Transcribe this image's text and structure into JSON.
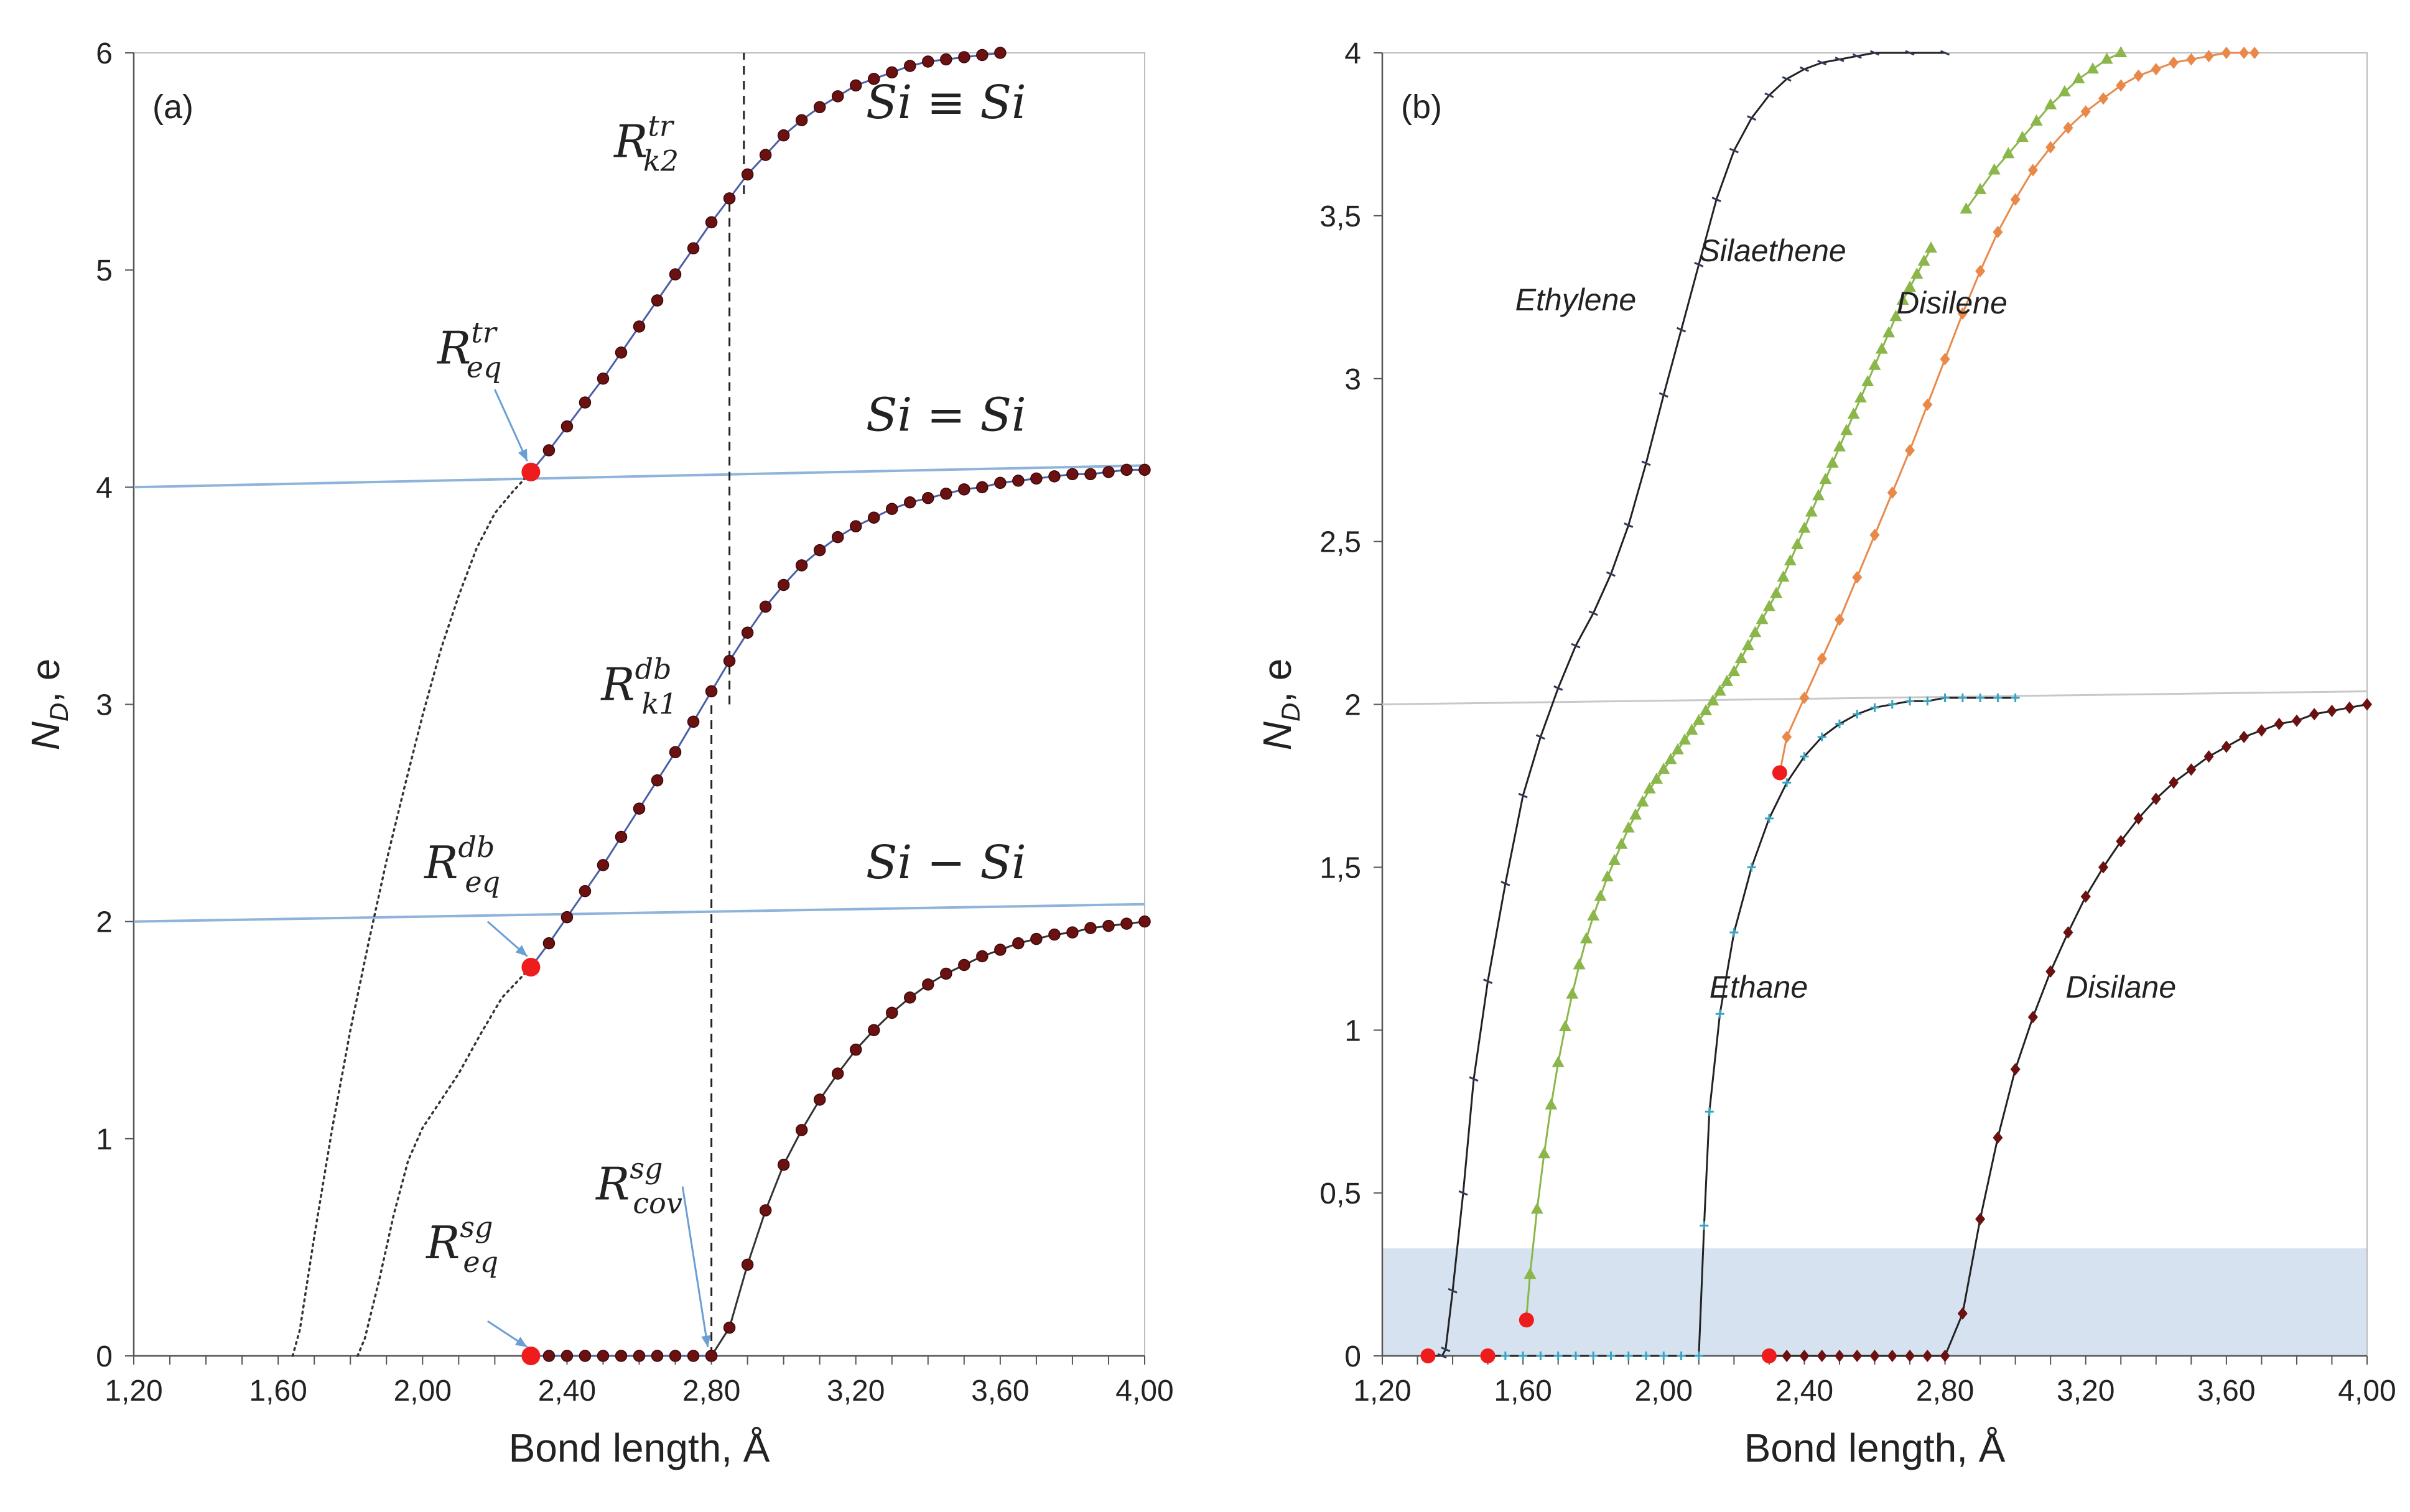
{
  "chart_data": [
    {
      "type": "line",
      "panel_label": "(a)",
      "xlabel": "Bond length, Å",
      "ylabel_main": "N",
      "ylabel_sub": "D",
      "ylabel_rest": ", e",
      "xlim": [
        1.2,
        4.0
      ],
      "ylim": [
        0,
        6
      ],
      "x_ticks": [
        "1,20",
        "1,60",
        "2,00",
        "2,40",
        "2,80",
        "3,20",
        "3,60",
        "4,00"
      ],
      "y_ticks": [
        "0",
        "1",
        "2",
        "3",
        "4",
        "5",
        "6"
      ],
      "series": [
        {
          "color": "#6b1111",
          "line_color": "#4a5fa8",
          "marker": "circle",
          "x": [
            2.3,
            2.35,
            2.4,
            2.45,
            2.5,
            2.55,
            2.6,
            2.65,
            2.7,
            2.75,
            2.8
          ],
          "y": [
            0,
            0,
            0,
            0,
            0,
            0,
            0,
            0,
            0,
            0,
            0
          ]
        },
        {
          "color": "#6b1111",
          "line_color": "#333333",
          "marker": "circle",
          "x": [
            2.8,
            2.85,
            2.9,
            2.95,
            3.0,
            3.05,
            3.1,
            3.15,
            3.2,
            3.25,
            3.3,
            3.35,
            3.4,
            3.45,
            3.5,
            3.55,
            3.6,
            3.65,
            3.7,
            3.75,
            3.8,
            3.85,
            3.9,
            3.95,
            4.0
          ],
          "y": [
            0,
            0.13,
            0.42,
            0.67,
            0.88,
            1.04,
            1.18,
            1.3,
            1.41,
            1.5,
            1.58,
            1.65,
            1.71,
            1.76,
            1.8,
            1.84,
            1.87,
            1.9,
            1.92,
            1.94,
            1.95,
            1.97,
            1.98,
            1.99,
            2.0
          ]
        },
        {
          "color": "#6b1111",
          "line_color": "#4a5fa8",
          "marker": "circle",
          "x": [
            2.3,
            2.35,
            2.4,
            2.45,
            2.5,
            2.55,
            2.6,
            2.65,
            2.7,
            2.75,
            2.8,
            2.85,
            2.9,
            2.95,
            3.0,
            3.05,
            3.1,
            3.15,
            3.2,
            3.25,
            3.3,
            3.35,
            3.4,
            3.45,
            3.5,
            3.55,
            3.6,
            3.65,
            3.7,
            3.75,
            3.8,
            3.85,
            3.9,
            3.95,
            4.0
          ],
          "y": [
            1.79,
            1.9,
            2.02,
            2.14,
            2.26,
            2.39,
            2.52,
            2.65,
            2.78,
            2.92,
            3.06,
            3.2,
            3.33,
            3.45,
            3.55,
            3.64,
            3.71,
            3.77,
            3.82,
            3.86,
            3.9,
            3.93,
            3.95,
            3.97,
            3.99,
            4.0,
            4.02,
            4.03,
            4.04,
            4.05,
            4.06,
            4.06,
            4.07,
            4.08,
            4.08
          ]
        },
        {
          "color": "#6b1111",
          "line_color": "#4a5fa8",
          "marker": "circle",
          "x": [
            2.3,
            2.35,
            2.4,
            2.45,
            2.5,
            2.55,
            2.6,
            2.65,
            2.7,
            2.75,
            2.8,
            2.85,
            2.9,
            2.95,
            3.0,
            3.05,
            3.1,
            3.15,
            3.2,
            3.25,
            3.3,
            3.35,
            3.4,
            3.45,
            3.5,
            3.55,
            3.6
          ],
          "y": [
            4.07,
            4.17,
            4.28,
            4.39,
            4.5,
            4.62,
            4.74,
            4.86,
            4.98,
            5.1,
            5.22,
            5.33,
            5.44,
            5.53,
            5.62,
            5.69,
            5.75,
            5.8,
            5.85,
            5.88,
            5.91,
            5.94,
            5.96,
            5.97,
            5.98,
            5.99,
            6.0
          ]
        }
      ],
      "dotted_curves": [
        {
          "x": [
            1.64,
            1.66,
            1.7,
            1.75,
            1.8,
            1.85,
            1.9,
            1.95,
            2.0,
            2.05,
            2.1,
            2.15,
            2.2,
            2.25,
            2.3
          ],
          "y": [
            0,
            0.12,
            0.55,
            1.05,
            1.5,
            1.9,
            2.28,
            2.62,
            2.95,
            3.25,
            3.5,
            3.72,
            3.88,
            3.98,
            4.07
          ]
        },
        {
          "x": [
            1.82,
            1.84,
            1.88,
            1.92,
            1.96,
            2.0,
            2.04,
            2.1,
            2.16,
            2.22,
            2.3
          ],
          "y": [
            0,
            0.08,
            0.35,
            0.65,
            0.9,
            1.05,
            1.15,
            1.3,
            1.48,
            1.65,
            1.79
          ]
        }
      ],
      "reference_lines": [
        {
          "x": [
            1.2,
            4.0
          ],
          "y": [
            2.0,
            2.08
          ]
        },
        {
          "x": [
            1.2,
            4.0
          ],
          "y": [
            4.0,
            4.1
          ]
        }
      ],
      "vertical_dashed_lines": [
        {
          "x": [
            2.89,
            2.89
          ],
          "y": [
            5.35,
            6.0
          ]
        },
        {
          "x": [
            2.85,
            2.85
          ],
          "y": [
            3.0,
            5.35
          ]
        },
        {
          "x": [
            2.8,
            2.8
          ],
          "y": [
            0,
            3.0
          ]
        }
      ],
      "highlight_points": [
        {
          "x": 2.3,
          "y": 0
        },
        {
          "x": 2.3,
          "y": 1.79
        },
        {
          "x": 2.3,
          "y": 4.07
        }
      ],
      "bond_labels": [
        {
          "text": "Si ≡ Si",
          "x": 3.45,
          "y": 5.7
        },
        {
          "text": "Si = Si",
          "x": 3.45,
          "y": 4.26
        },
        {
          "text": "Si − Si",
          "x": 3.45,
          "y": 2.2
        }
      ],
      "annotations": [
        {
          "main": "R",
          "sup": "tr",
          "sub": "k2",
          "x": 2.62,
          "y": 5.52
        },
        {
          "main": "R",
          "sup": "tr",
          "sub": "eq",
          "x": 2.13,
          "y": 4.57
        },
        {
          "main": "R",
          "sup": "db",
          "sub": "k1",
          "x": 2.6,
          "y": 3.02
        },
        {
          "main": "R",
          "sup": "db",
          "sub": "eq",
          "x": 2.11,
          "y": 2.2
        },
        {
          "main": "R",
          "sup": "sg",
          "sub": "cov",
          "x": 2.6,
          "y": 0.72
        },
        {
          "main": "R",
          "sup": "sg",
          "sub": "eq",
          "x": 2.11,
          "y": 0.45
        }
      ]
    },
    {
      "type": "line",
      "panel_label": "(b)",
      "xlabel": "Bond length, Å",
      "ylabel_main": "N",
      "ylabel_sub": "D",
      "ylabel_rest": ", e",
      "xlim": [
        1.2,
        4.0
      ],
      "ylim": [
        0,
        4
      ],
      "x_ticks": [
        "1,20",
        "1,60",
        "2,00",
        "2,40",
        "2,80",
        "3,20",
        "3,60",
        "4,00"
      ],
      "y_ticks": [
        "0",
        "0,5",
        "1",
        "1,5",
        "2",
        "2,5",
        "3",
        "3,5",
        "4"
      ],
      "shaded_band": [
        0,
        0.33
      ],
      "reference_line": {
        "x": [
          1.2,
          4.0
        ],
        "y": [
          2.0,
          2.04
        ]
      },
      "series": [
        {
          "name": "Ethylene",
          "color": "#2f3a56",
          "marker": "tick",
          "x": [
            1.33,
            1.37,
            1.38,
            1.4,
            1.43,
            1.46,
            1.5,
            1.55,
            1.6,
            1.65,
            1.7,
            1.75,
            1.8,
            1.85,
            1.9,
            1.95,
            2.0,
            2.05,
            2.1,
            2.15,
            2.2,
            2.25,
            2.3,
            2.35,
            2.4,
            2.45,
            2.5,
            2.55,
            2.6,
            2.7,
            2.8
          ],
          "y": [
            0,
            0,
            0.02,
            0.2,
            0.5,
            0.85,
            1.15,
            1.45,
            1.72,
            1.9,
            2.05,
            2.18,
            2.28,
            2.4,
            2.55,
            2.74,
            2.95,
            3.15,
            3.35,
            3.55,
            3.7,
            3.8,
            3.87,
            3.92,
            3.95,
            3.97,
            3.98,
            3.99,
            4.0,
            4.0,
            4.0
          ]
        },
        {
          "name": "Silaethene",
          "color": "#8ab64a",
          "marker": "triangle",
          "x": [
            1.61,
            1.62,
            1.64,
            1.66,
            1.68,
            1.7,
            1.72,
            1.74,
            1.76,
            1.78,
            1.8,
            1.82,
            1.84,
            1.86,
            1.88,
            1.9,
            1.92,
            1.94,
            1.96,
            1.98,
            2.0,
            2.02,
            2.04,
            2.06,
            2.08,
            2.1,
            2.12,
            2.14,
            2.16,
            2.18,
            2.2,
            2.22,
            2.24,
            2.26,
            2.28,
            2.3,
            2.32,
            2.34,
            2.36,
            2.38,
            2.4,
            2.42,
            2.44,
            2.46,
            2.48,
            2.5,
            2.52,
            2.54,
            2.56,
            2.58,
            2.6,
            2.62,
            2.64,
            2.66,
            2.68,
            2.7,
            2.72,
            2.74,
            2.76
          ],
          "y": [
            0.12,
            0.25,
            0.45,
            0.62,
            0.77,
            0.9,
            1.01,
            1.11,
            1.2,
            1.28,
            1.35,
            1.41,
            1.47,
            1.52,
            1.57,
            1.62,
            1.66,
            1.7,
            1.74,
            1.77,
            1.8,
            1.83,
            1.86,
            1.89,
            1.92,
            1.95,
            1.98,
            2.01,
            2.04,
            2.07,
            2.1,
            2.14,
            2.18,
            2.22,
            2.26,
            2.3,
            2.34,
            2.39,
            2.44,
            2.49,
            2.54,
            2.59,
            2.64,
            2.69,
            2.74,
            2.79,
            2.84,
            2.89,
            2.94,
            2.99,
            3.04,
            3.09,
            3.14,
            3.19,
            3.24,
            3.28,
            3.32,
            3.36,
            3.4
          ]
        },
        {
          "name": "",
          "color": "#8ab64a",
          "marker": "triangle",
          "x": [
            2.86,
            2.9,
            2.94,
            2.98,
            3.02,
            3.06,
            3.1,
            3.14,
            3.18,
            3.22,
            3.26,
            3.3
          ],
          "y": [
            3.52,
            3.58,
            3.64,
            3.69,
            3.74,
            3.79,
            3.84,
            3.88,
            3.92,
            3.95,
            3.98,
            4.0
          ]
        },
        {
          "name": "Disilene",
          "color": "#e8894a",
          "marker": "diamond",
          "x": [
            2.33,
            2.35,
            2.4,
            2.45,
            2.5,
            2.55,
            2.6,
            2.65,
            2.7,
            2.75,
            2.8,
            2.85,
            2.9,
            2.95,
            3.0,
            3.05,
            3.1,
            3.15,
            3.2,
            3.25,
            3.3,
            3.35,
            3.4,
            3.45,
            3.5,
            3.55,
            3.6,
            3.65,
            3.68
          ],
          "y": [
            1.79,
            1.9,
            2.02,
            2.14,
            2.26,
            2.39,
            2.52,
            2.65,
            2.78,
            2.92,
            3.06,
            3.2,
            3.33,
            3.45,
            3.55,
            3.64,
            3.71,
            3.77,
            3.82,
            3.86,
            3.9,
            3.93,
            3.95,
            3.97,
            3.98,
            3.99,
            4.0,
            4.0,
            4.0
          ]
        },
        {
          "name": "Ethane",
          "color": "#3aa3c0",
          "marker": "plus",
          "x": [
            1.5,
            1.55,
            1.6,
            1.65,
            1.7,
            1.75,
            1.8,
            1.85,
            1.9,
            1.95,
            2.0,
            2.05,
            2.1,
            2.115,
            2.13,
            2.16,
            2.2,
            2.25,
            2.3,
            2.35,
            2.4,
            2.45,
            2.5,
            2.55,
            2.6,
            2.65,
            2.7,
            2.75,
            2.8,
            2.85,
            2.9,
            2.95,
            3.0
          ],
          "y": [
            0,
            0,
            0,
            0,
            0,
            0,
            0,
            0,
            0,
            0,
            0,
            0,
            0,
            0.4,
            0.75,
            1.05,
            1.3,
            1.5,
            1.65,
            1.76,
            1.84,
            1.9,
            1.94,
            1.97,
            1.99,
            2.0,
            2.01,
            2.01,
            2.02,
            2.02,
            2.02,
            2.02,
            2.02
          ]
        },
        {
          "name": "Disilane",
          "color": "#6b1111",
          "marker": "diamond",
          "x": [
            2.3,
            2.35,
            2.4,
            2.45,
            2.5,
            2.55,
            2.6,
            2.65,
            2.7,
            2.75,
            2.8,
            2.85,
            2.9,
            2.95,
            3.0,
            3.05,
            3.1,
            3.15,
            3.2,
            3.25,
            3.3,
            3.35,
            3.4,
            3.45,
            3.5,
            3.55,
            3.6,
            3.65,
            3.7,
            3.75,
            3.8,
            3.85,
            3.9,
            3.95,
            4.0
          ],
          "y": [
            0,
            0,
            0,
            0,
            0,
            0,
            0,
            0,
            0,
            0,
            0,
            0.13,
            0.42,
            0.67,
            0.88,
            1.04,
            1.18,
            1.3,
            1.41,
            1.5,
            1.58,
            1.65,
            1.71,
            1.76,
            1.8,
            1.84,
            1.87,
            1.9,
            1.92,
            1.94,
            1.95,
            1.97,
            1.98,
            1.99,
            2.0
          ]
        }
      ],
      "highlight_points": [
        {
          "x": 1.33,
          "y": 0
        },
        {
          "x": 1.5,
          "y": 0
        },
        {
          "x": 1.61,
          "y": 0.11
        },
        {
          "x": 2.3,
          "y": 0
        },
        {
          "x": 2.33,
          "y": 1.79
        }
      ],
      "series_labels": [
        {
          "text": "Ethylene",
          "x": 1.75,
          "y": 3.21
        },
        {
          "text": "Silaethene",
          "x": 2.31,
          "y": 3.36
        },
        {
          "text": "Disilene",
          "x": 2.82,
          "y": 3.2
        },
        {
          "text": "Ethane",
          "x": 2.27,
          "y": 1.1
        },
        {
          "text": "Disilane",
          "x": 3.3,
          "y": 1.1
        }
      ]
    }
  ]
}
